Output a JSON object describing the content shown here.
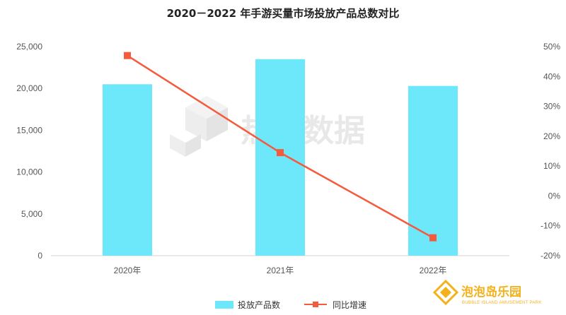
{
  "chart_data": {
    "type": "bar",
    "title": "2020－2022 年手游买量市场投放产品总数对比",
    "categories": [
      "2020年",
      "2021年",
      "2022年"
    ],
    "series": [
      {
        "name": "投放产品数",
        "type": "bar",
        "axis": "left",
        "values": [
          20500,
          23500,
          20300
        ],
        "color": "#6de8fa"
      },
      {
        "name": "同比增速",
        "type": "line",
        "axis": "right",
        "values": [
          0.47,
          0.145,
          -0.14
        ],
        "color": "#f55a3c"
      }
    ],
    "y_left": {
      "ticks": [
        0,
        5000,
        10000,
        15000,
        20000,
        25000
      ],
      "tick_labels": [
        "0",
        "5,000",
        "10,000",
        "15,000",
        "20,000",
        "25,000"
      ],
      "ylim": [
        0,
        25000
      ]
    },
    "y_right": {
      "ticks": [
        -0.2,
        -0.1,
        0,
        0.1,
        0.2,
        0.3,
        0.4,
        0.5
      ],
      "tick_labels": [
        "-20%",
        "-10%",
        "0%",
        "10%",
        "20%",
        "30%",
        "40%",
        "50%"
      ],
      "ylim": [
        -0.2,
        0.5
      ]
    },
    "grid": false,
    "legend_position": "bottom"
  },
  "watermark": {
    "text": "热云数据"
  },
  "logo": {
    "name": "泡泡岛乐园",
    "subtitle": "BUBBLE ISLAND AMUSEMENT PARK",
    "color": "#f3b21b"
  }
}
